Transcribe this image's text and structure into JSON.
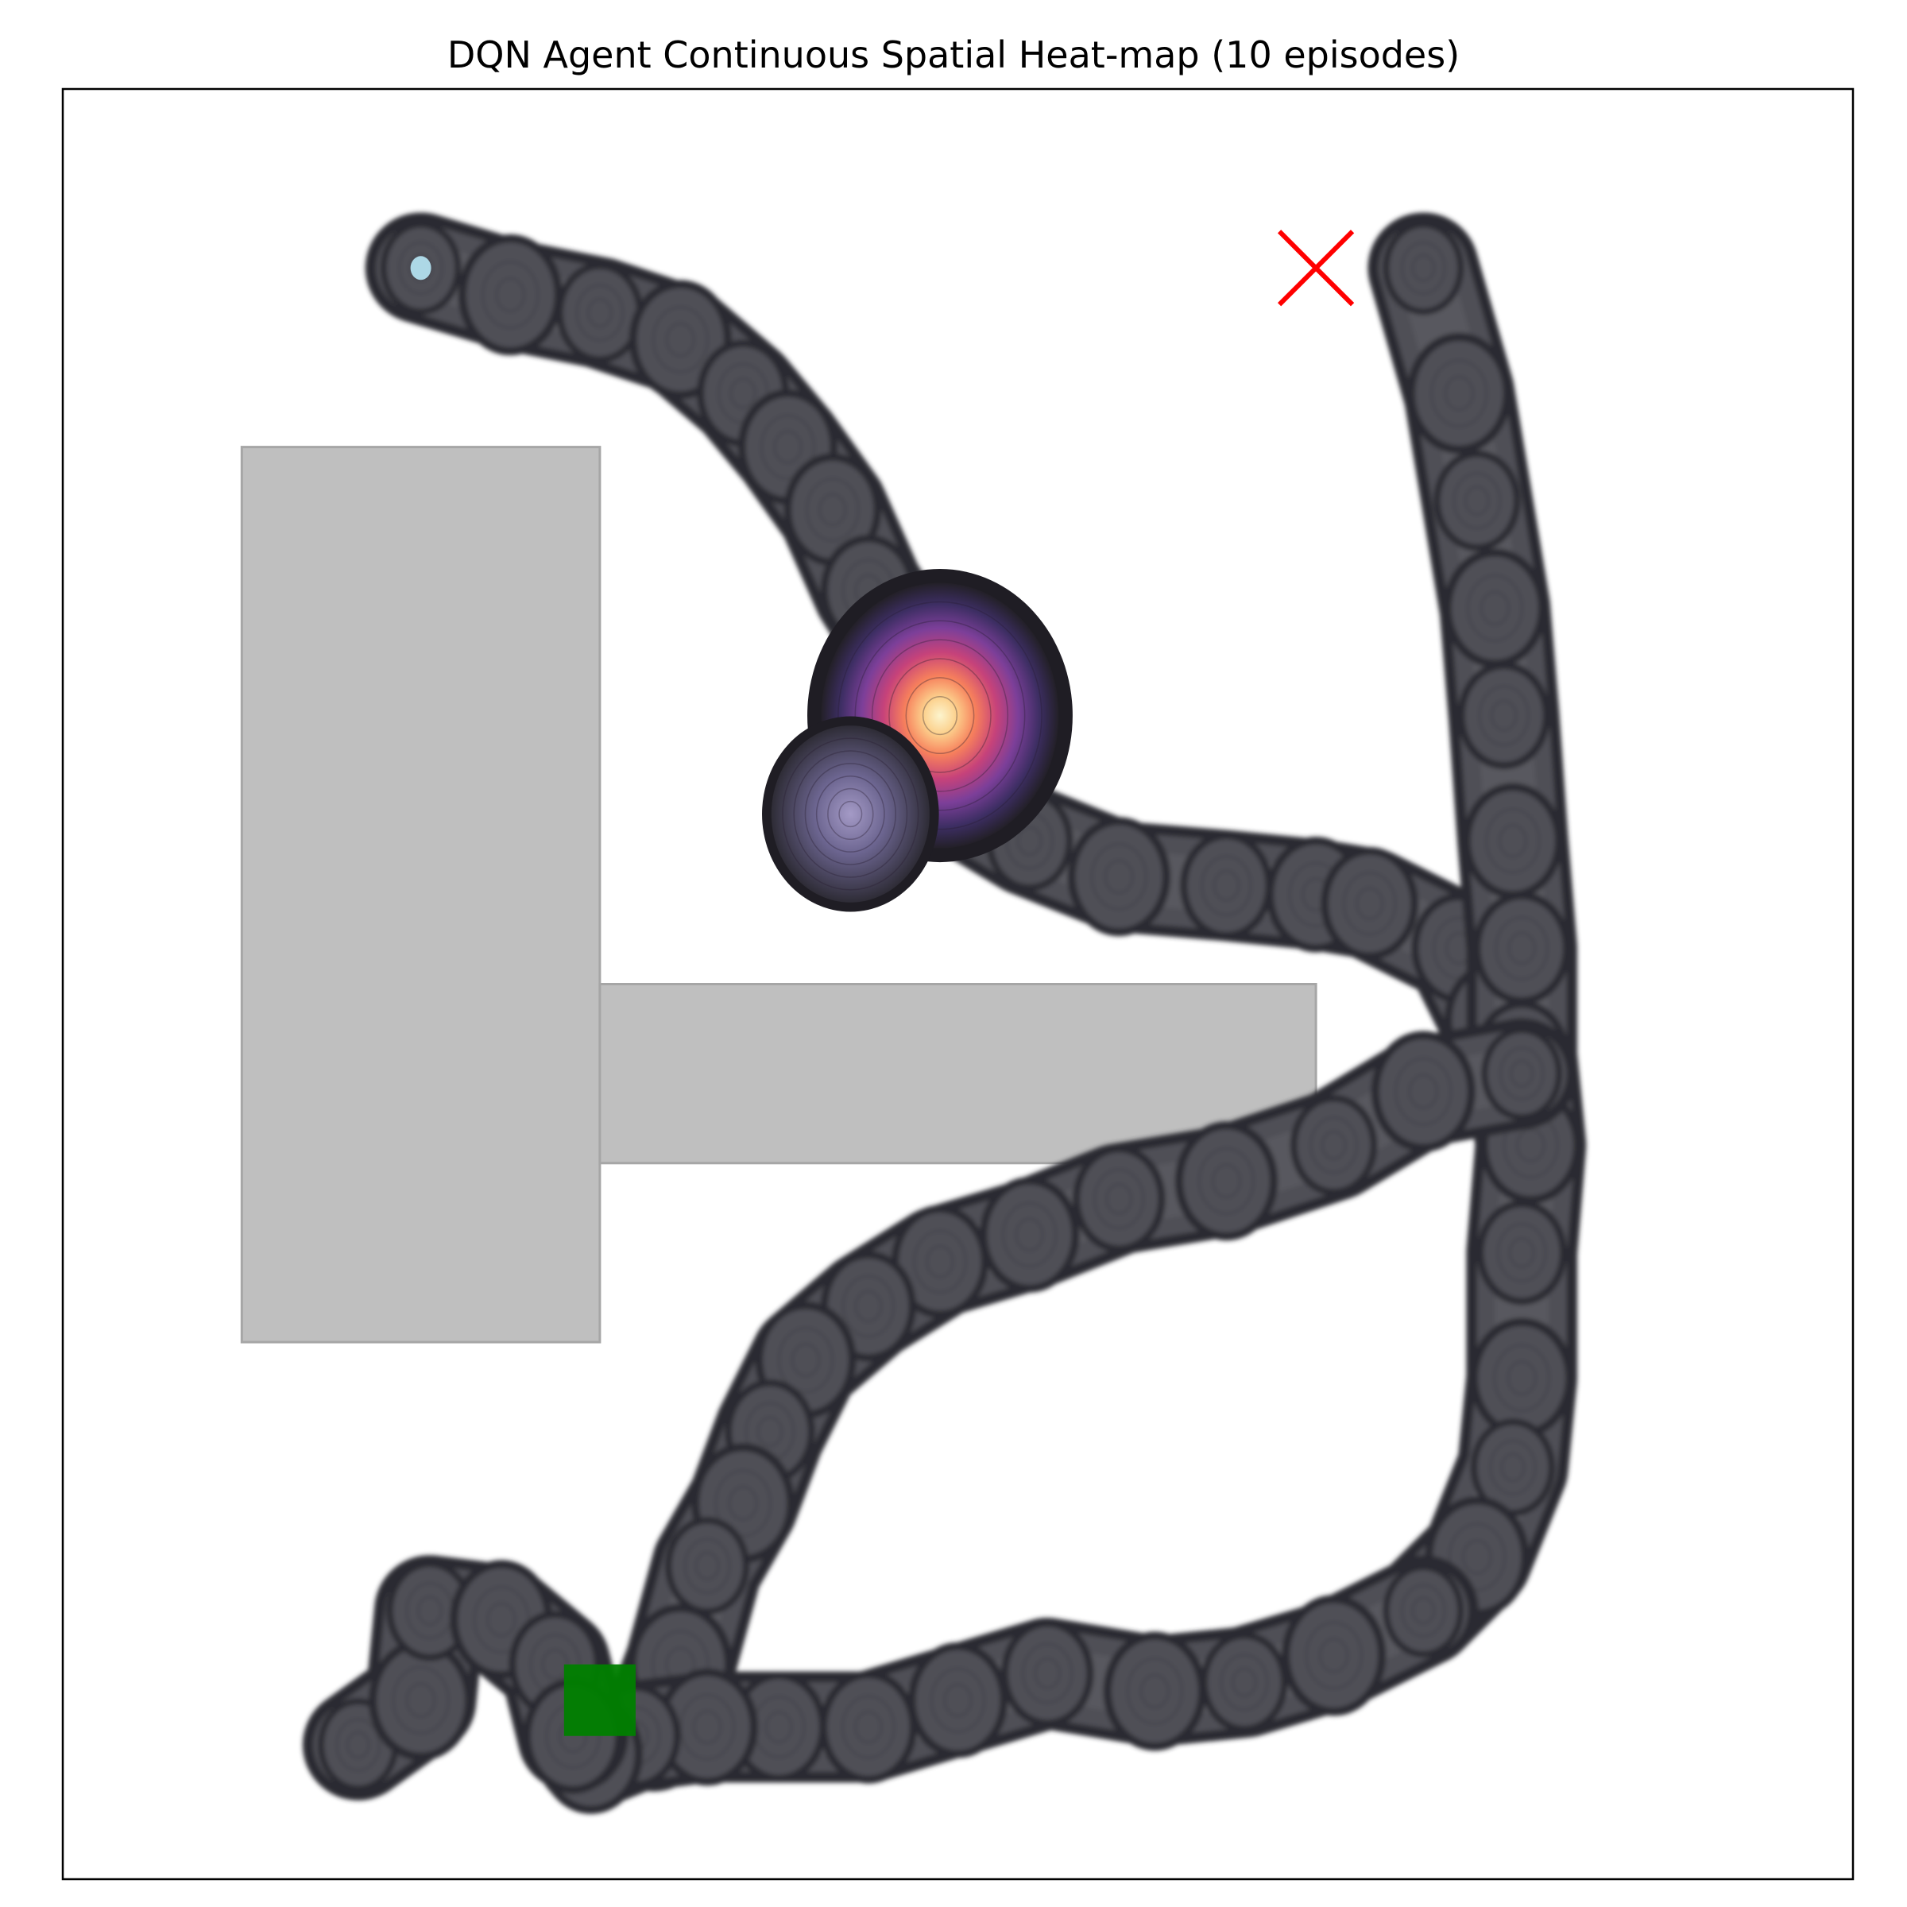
{
  "chart_data": {
    "type": "heatmap",
    "title": "DQN Agent Continuous Spatial Heat-map (10 episodes)",
    "xlabel": "",
    "ylabel": "",
    "xlim": [
      0,
      10
    ],
    "ylim": [
      0,
      10
    ],
    "axis_ticks": "hidden",
    "grid": false,
    "legend": "none",
    "colormap": "magma",
    "colors": {
      "obstacle_fill": "#bfbfbf",
      "obstacle_edge": "#a6a6a6",
      "heat_base": "#505056",
      "heat_edge": "#2b2b30",
      "heat_peak": "#fcecb5",
      "goal_marker": "#ff0000",
      "start_marker": "#008000",
      "start_point": "#add8e6"
    },
    "obstacles": [
      {
        "name": "obstacle-left-block",
        "x0": 1.0,
        "x1": 3.0,
        "y0": 3.0,
        "y1": 8.0
      },
      {
        "name": "obstacle-horizontal-bar",
        "x0": 3.0,
        "x1": 7.0,
        "y0": 4.0,
        "y1": 5.0
      }
    ],
    "goal": {
      "marker": "x",
      "x": 7.0,
      "y": 9.0
    },
    "start": {
      "marker": "square",
      "x": 3.0,
      "y": 1.0,
      "size": 0.4
    },
    "start_point": {
      "x": 2.0,
      "y": 9.0
    },
    "density_peaks": [
      {
        "x": 4.9,
        "y": 6.5,
        "intensity": 1.0
      },
      {
        "x": 4.4,
        "y": 5.95,
        "intensity": 0.35
      }
    ],
    "trajectories": [
      {
        "name": "north-west-arc",
        "points": [
          [
            2.0,
            9.0
          ],
          [
            2.5,
            8.85
          ],
          [
            3.0,
            8.75
          ],
          [
            3.45,
            8.6
          ],
          [
            3.8,
            8.3
          ],
          [
            4.05,
            8.0
          ],
          [
            4.3,
            7.65
          ],
          [
            4.5,
            7.2
          ],
          [
            4.75,
            6.8
          ],
          [
            4.9,
            6.5
          ]
        ]
      },
      {
        "name": "middle-corridor",
        "points": [
          [
            4.4,
            5.95
          ],
          [
            4.9,
            6.1
          ],
          [
            5.4,
            5.8
          ],
          [
            5.9,
            5.6
          ],
          [
            6.5,
            5.55
          ],
          [
            7.0,
            5.5
          ],
          [
            7.3,
            5.45
          ],
          [
            7.8,
            5.2
          ],
          [
            8.0,
            4.8
          ]
        ]
      },
      {
        "name": "east-wall-run",
        "points": [
          [
            7.6,
            9.0
          ],
          [
            7.8,
            8.3
          ],
          [
            7.9,
            7.7
          ],
          [
            8.0,
            7.1
          ],
          [
            8.05,
            6.5
          ],
          [
            8.1,
            5.8
          ],
          [
            8.15,
            5.2
          ],
          [
            8.15,
            4.6
          ],
          [
            8.2,
            4.1
          ],
          [
            8.15,
            3.5
          ],
          [
            8.15,
            2.8
          ],
          [
            8.1,
            2.3
          ],
          [
            7.9,
            1.8
          ],
          [
            7.6,
            1.5
          ]
        ]
      },
      {
        "name": "lower-arc",
        "points": [
          [
            8.15,
            4.5
          ],
          [
            7.6,
            4.4
          ],
          [
            7.1,
            4.1
          ],
          [
            6.5,
            3.9
          ],
          [
            5.9,
            3.8
          ],
          [
            5.4,
            3.6
          ],
          [
            4.9,
            3.45
          ],
          [
            4.5,
            3.2
          ],
          [
            4.15,
            2.9
          ],
          [
            3.95,
            2.5
          ],
          [
            3.8,
            2.1
          ],
          [
            3.6,
            1.75
          ],
          [
            3.45,
            1.2
          ],
          [
            3.3,
            0.8
          ]
        ]
      },
      {
        "name": "bottom-sweep",
        "points": [
          [
            7.6,
            1.5
          ],
          [
            7.1,
            1.25
          ],
          [
            6.6,
            1.1
          ],
          [
            6.1,
            1.05
          ],
          [
            5.5,
            1.15
          ],
          [
            5.0,
            1.0
          ],
          [
            4.5,
            0.85
          ],
          [
            4.0,
            0.85
          ],
          [
            3.6,
            0.85
          ],
          [
            3.2,
            0.8
          ],
          [
            2.95,
            0.7
          ]
        ]
      },
      {
        "name": "bottom-left-cluster",
        "points": [
          [
            1.65,
            0.75
          ],
          [
            2.0,
            1.0
          ],
          [
            2.05,
            1.5
          ],
          [
            2.45,
            1.45
          ],
          [
            2.75,
            1.2
          ],
          [
            2.85,
            0.8
          ]
        ]
      }
    ]
  }
}
